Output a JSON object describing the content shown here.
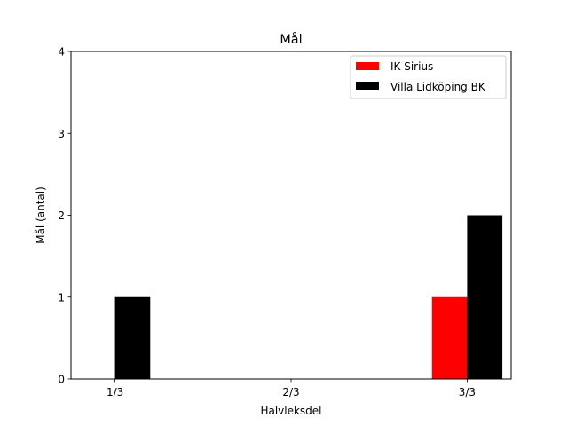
{
  "chart_data": {
    "type": "bar",
    "title": "Mål",
    "xlabel": "Halvleksdel",
    "ylabel": "Mål (antal)",
    "categories": [
      "1/3",
      "2/3",
      "3/3"
    ],
    "series": [
      {
        "name": "IK Sirius",
        "color": "#ff0000",
        "values": [
          0,
          0,
          1
        ]
      },
      {
        "name": "Villa Lidköping BK",
        "color": "#000000",
        "values": [
          1,
          0,
          2
        ]
      }
    ],
    "ylim": [
      0,
      4
    ],
    "yticks": [
      0,
      1,
      2,
      3,
      4
    ],
    "grid": false,
    "legend_position": "top-right"
  }
}
